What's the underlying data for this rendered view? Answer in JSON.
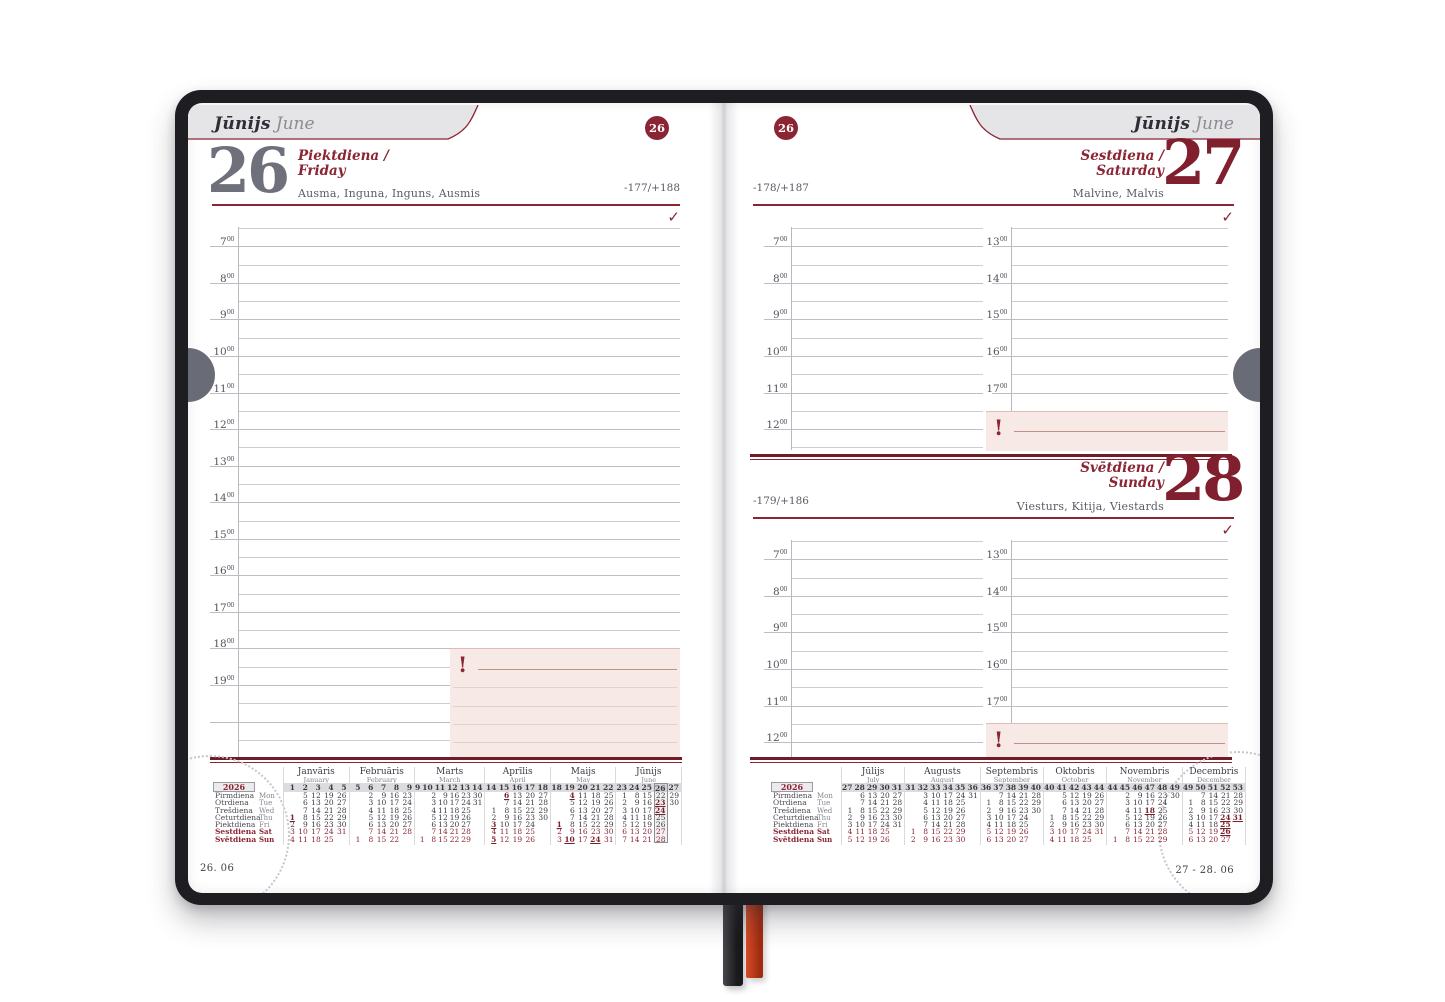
{
  "spread": {
    "month_label": {
      "lv": "Jūnijs",
      "en": "June"
    },
    "week_badge": "26",
    "check_mark": "✓",
    "alert_mark": "!",
    "minute_mark": "00"
  },
  "left_page": {
    "day_number": "26",
    "weekday_lv": "Piektdiena /",
    "weekday_en": "Friday",
    "name_days": "Ausma, Inguna, Inguns, Ausmis",
    "sun_info": "-177/+188",
    "hours": [
      "7",
      "8",
      "9",
      "10",
      "11",
      "12",
      "13",
      "14",
      "15",
      "16",
      "17",
      "18",
      "19"
    ],
    "footer": "26. 06"
  },
  "right_page": {
    "saturday": {
      "day_number": "27",
      "weekday_lv": "Sestdiena /",
      "weekday_en": "Saturday",
      "name_days": "Malvine, Malvis",
      "sun_info": "-178/+187"
    },
    "sunday": {
      "day_number": "28",
      "weekday_lv": "Svētdiena /",
      "weekday_en": "Sunday",
      "name_days": "Viesturs, Kitija, Viestards",
      "sun_info": "-179/+186"
    },
    "hours_morning": [
      "7",
      "8",
      "9",
      "10",
      "11",
      "12"
    ],
    "hours_afternoon": [
      "13",
      "14",
      "15",
      "16",
      "17"
    ],
    "footer": "27 - 28. 06"
  },
  "minical": {
    "year": "2026",
    "weekdays": [
      [
        "Pirmdiena",
        "Mon"
      ],
      [
        "Otrdiena",
        "Tue"
      ],
      [
        "Trešdiena",
        "Wed"
      ],
      [
        "Ceturtdiena",
        "Thu"
      ],
      [
        "Piektdiena",
        "Fri"
      ],
      [
        "Sestdiena",
        "Sat"
      ],
      [
        "Svētdiena",
        "Sun"
      ]
    ],
    "months_first_half": [
      {
        "lv": "Janvāris",
        "en": "January",
        "weeks": [
          "1",
          "2",
          "3",
          "4",
          "5"
        ],
        "boxed": null,
        "rows": [
          [
            "",
            "5",
            "12",
            "19",
            "26"
          ],
          [
            "",
            "6",
            "13",
            "20",
            "27"
          ],
          [
            "",
            "7",
            "14",
            "21",
            "28"
          ],
          [
            "*1",
            "8",
            "15",
            "22",
            "29"
          ],
          [
            "2",
            "9",
            "16",
            "23",
            "30"
          ],
          [
            "3",
            "10",
            "17",
            "24",
            "31"
          ],
          [
            "4",
            "11",
            "18",
            "25",
            ""
          ]
        ]
      },
      {
        "lv": "Februāris",
        "en": "February",
        "weeks": [
          "5",
          "6",
          "7",
          "8",
          "9"
        ],
        "boxed": null,
        "rows": [
          [
            "",
            "2",
            "9",
            "16",
            "23"
          ],
          [
            "",
            "3",
            "10",
            "17",
            "24"
          ],
          [
            "",
            "4",
            "11",
            "18",
            "25"
          ],
          [
            "",
            "5",
            "12",
            "19",
            "26"
          ],
          [
            "",
            "6",
            "13",
            "20",
            "27"
          ],
          [
            "",
            "7",
            "14",
            "21",
            "28"
          ],
          [
            "1",
            "8",
            "15",
            "22",
            ""
          ]
        ]
      },
      {
        "lv": "Marts",
        "en": "March",
        "weeks": [
          "9",
          "10",
          "11",
          "12",
          "13",
          "14"
        ],
        "boxed": null,
        "rows": [
          [
            "",
            "2",
            "9",
            "16",
            "23",
            "30"
          ],
          [
            "",
            "3",
            "10",
            "17",
            "24",
            "31"
          ],
          [
            "",
            "4",
            "11",
            "18",
            "25",
            ""
          ],
          [
            "",
            "5",
            "12",
            "19",
            "26",
            ""
          ],
          [
            "",
            "6",
            "13",
            "20",
            "27",
            ""
          ],
          [
            "",
            "7",
            "14",
            "21",
            "28",
            ""
          ],
          [
            "1",
            "8",
            "15",
            "22",
            "29",
            ""
          ]
        ]
      },
      {
        "lv": "Aprīlis",
        "en": "April",
        "weeks": [
          "14",
          "15",
          "16",
          "17",
          "18"
        ],
        "boxed": null,
        "rows": [
          [
            "",
            "*6",
            "13",
            "20",
            "27"
          ],
          [
            "",
            "7",
            "14",
            "21",
            "28"
          ],
          [
            "1",
            "8",
            "15",
            "22",
            "29"
          ],
          [
            "2",
            "9",
            "16",
            "23",
            "30"
          ],
          [
            "*3",
            "10",
            "17",
            "24",
            ""
          ],
          [
            "4",
            "11",
            "18",
            "25",
            ""
          ],
          [
            "*5",
            "12",
            "19",
            "26",
            ""
          ]
        ]
      },
      {
        "lv": "Maijs",
        "en": "May",
        "weeks": [
          "18",
          "19",
          "20",
          "21",
          "22"
        ],
        "boxed": null,
        "rows": [
          [
            "",
            "*4",
            "11",
            "18",
            "25"
          ],
          [
            "",
            "5",
            "12",
            "19",
            "26"
          ],
          [
            "",
            "6",
            "13",
            "20",
            "27"
          ],
          [
            "",
            "7",
            "14",
            "21",
            "28"
          ],
          [
            "*1",
            "8",
            "15",
            "22",
            "29"
          ],
          [
            "2",
            "9",
            "16",
            "23",
            "30"
          ],
          [
            "3",
            "*10",
            "17",
            "*24",
            "31"
          ]
        ]
      },
      {
        "lv": "Jūnijs",
        "en": "June",
        "weeks": [
          "23",
          "24",
          "25",
          "26",
          "27"
        ],
        "boxed": 3,
        "rows": [
          [
            "1",
            "8",
            "15",
            "22",
            "29"
          ],
          [
            "2",
            "9",
            "16",
            "*23",
            "30"
          ],
          [
            "3",
            "10",
            "17",
            "*24",
            ""
          ],
          [
            "4",
            "11",
            "18",
            "25",
            ""
          ],
          [
            "5",
            "12",
            "19",
            "26",
            ""
          ],
          [
            "6",
            "13",
            "20",
            "27",
            ""
          ],
          [
            "7",
            "14",
            "21",
            "28",
            ""
          ]
        ]
      }
    ],
    "months_second_half": [
      {
        "lv": "Jūlijs",
        "en": "July",
        "weeks": [
          "27",
          "28",
          "29",
          "30",
          "31"
        ],
        "boxed": null,
        "rows": [
          [
            "",
            "6",
            "13",
            "20",
            "27"
          ],
          [
            "",
            "7",
            "14",
            "21",
            "28"
          ],
          [
            "1",
            "8",
            "15",
            "22",
            "29"
          ],
          [
            "2",
            "9",
            "16",
            "23",
            "30"
          ],
          [
            "3",
            "10",
            "17",
            "24",
            "31"
          ],
          [
            "4",
            "11",
            "18",
            "25",
            ""
          ],
          [
            "5",
            "12",
            "19",
            "26",
            ""
          ]
        ]
      },
      {
        "lv": "Augusts",
        "en": "August",
        "weeks": [
          "31",
          "32",
          "33",
          "34",
          "35",
          "36"
        ],
        "boxed": null,
        "rows": [
          [
            "",
            "3",
            "10",
            "17",
            "24",
            "31"
          ],
          [
            "",
            "4",
            "11",
            "18",
            "25",
            ""
          ],
          [
            "",
            "5",
            "12",
            "19",
            "26",
            ""
          ],
          [
            "",
            "6",
            "13",
            "20",
            "27",
            ""
          ],
          [
            "",
            "7",
            "14",
            "21",
            "28",
            ""
          ],
          [
            "1",
            "8",
            "15",
            "22",
            "29",
            ""
          ],
          [
            "2",
            "9",
            "16",
            "23",
            "30",
            ""
          ]
        ]
      },
      {
        "lv": "Septembris",
        "en": "September",
        "weeks": [
          "36",
          "37",
          "38",
          "39",
          "40"
        ],
        "boxed": null,
        "rows": [
          [
            "",
            "7",
            "14",
            "21",
            "28"
          ],
          [
            "1",
            "8",
            "15",
            "22",
            "29"
          ],
          [
            "2",
            "9",
            "16",
            "23",
            "30"
          ],
          [
            "3",
            "10",
            "17",
            "24",
            ""
          ],
          [
            "4",
            "11",
            "18",
            "25",
            ""
          ],
          [
            "5",
            "12",
            "19",
            "26",
            ""
          ],
          [
            "6",
            "13",
            "20",
            "27",
            ""
          ]
        ]
      },
      {
        "lv": "Oktobris",
        "en": "October",
        "weeks": [
          "40",
          "41",
          "42",
          "43",
          "44"
        ],
        "boxed": null,
        "rows": [
          [
            "",
            "5",
            "12",
            "19",
            "26"
          ],
          [
            "",
            "6",
            "13",
            "20",
            "27"
          ],
          [
            "",
            "7",
            "14",
            "21",
            "28"
          ],
          [
            "1",
            "8",
            "15",
            "22",
            "29"
          ],
          [
            "2",
            "9",
            "16",
            "23",
            "30"
          ],
          [
            "3",
            "10",
            "17",
            "24",
            "31"
          ],
          [
            "4",
            "11",
            "18",
            "25",
            ""
          ]
        ]
      },
      {
        "lv": "Novembris",
        "en": "November",
        "weeks": [
          "44",
          "45",
          "46",
          "47",
          "48",
          "49"
        ],
        "boxed": null,
        "rows": [
          [
            "",
            "2",
            "9",
            "16",
            "23",
            "30"
          ],
          [
            "",
            "3",
            "10",
            "17",
            "24",
            ""
          ],
          [
            "",
            "4",
            "11",
            "*18",
            "25",
            ""
          ],
          [
            "",
            "5",
            "12",
            "19",
            "26",
            ""
          ],
          [
            "",
            "6",
            "13",
            "20",
            "27",
            ""
          ],
          [
            "",
            "7",
            "14",
            "21",
            "28",
            ""
          ],
          [
            "1",
            "8",
            "15",
            "22",
            "29",
            ""
          ]
        ]
      },
      {
        "lv": "Decembris",
        "en": "December",
        "weeks": [
          "49",
          "50",
          "51",
          "52",
          "53"
        ],
        "boxed": null,
        "rows": [
          [
            "",
            "7",
            "14",
            "21",
            "28"
          ],
          [
            "1",
            "8",
            "15",
            "22",
            "29"
          ],
          [
            "2",
            "9",
            "16",
            "23",
            "30"
          ],
          [
            "3",
            "10",
            "17",
            "*24",
            "*31"
          ],
          [
            "4",
            "11",
            "18",
            "*25",
            ""
          ],
          [
            "5",
            "12",
            "19",
            "*26",
            ""
          ],
          [
            "6",
            "13",
            "20",
            "27",
            ""
          ]
        ]
      }
    ]
  }
}
